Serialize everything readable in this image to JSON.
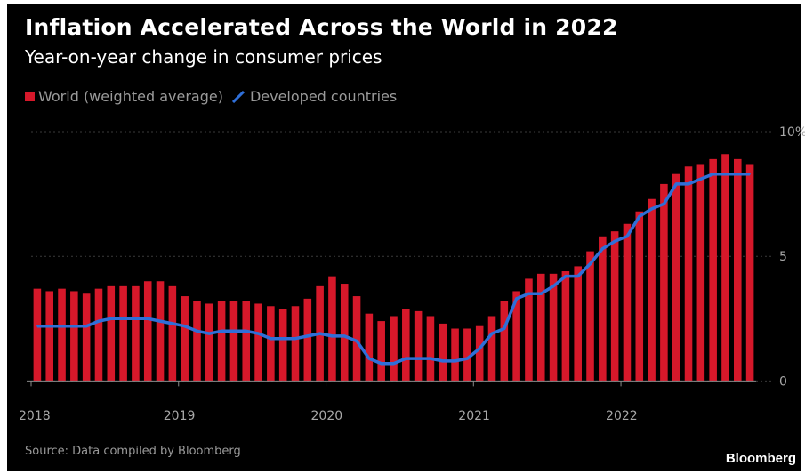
{
  "title": "Inflation Accelerated Across the World in 2022",
  "subtitle": "Year-on-year change in consumer prices",
  "legend": [
    {
      "label": "World (weighted average)",
      "color": "#d6182a",
      "icon": "red-square-icon"
    },
    {
      "label": "Developed countries",
      "color": "#2f6fd8",
      "icon": "blue-line-icon"
    }
  ],
  "source": "Source: Data compiled by Bloomberg",
  "brand": "Bloomberg",
  "chart_data": {
    "type": "bar",
    "x_tick_labels": [
      "2018",
      "2019",
      "2020",
      "2021",
      "2022"
    ],
    "y_tick_labels": [
      "0",
      "5",
      "10%"
    ],
    "y_ticks": [
      0,
      5,
      10
    ],
    "ylim": [
      -0.7,
      11
    ],
    "months": [
      "2018-01",
      "2018-02",
      "2018-03",
      "2018-04",
      "2018-05",
      "2018-06",
      "2018-07",
      "2018-08",
      "2018-09",
      "2018-10",
      "2018-11",
      "2018-12",
      "2019-01",
      "2019-02",
      "2019-03",
      "2019-04",
      "2019-05",
      "2019-06",
      "2019-07",
      "2019-08",
      "2019-09",
      "2019-10",
      "2019-11",
      "2019-12",
      "2020-01",
      "2020-02",
      "2020-03",
      "2020-04",
      "2020-05",
      "2020-06",
      "2020-07",
      "2020-08",
      "2020-09",
      "2020-10",
      "2020-11",
      "2020-12",
      "2021-01",
      "2021-02",
      "2021-03",
      "2021-04",
      "2021-05",
      "2021-06",
      "2021-07",
      "2021-08",
      "2021-09",
      "2021-10",
      "2021-11",
      "2021-12",
      "2022-01",
      "2022-02",
      "2022-03",
      "2022-04",
      "2022-05",
      "2022-06",
      "2022-07",
      "2022-08",
      "2022-09",
      "2022-10",
      "2022-11"
    ],
    "series": [
      {
        "name": "World (weighted average)",
        "kind": "bar",
        "color": "#d6182a",
        "values": [
          3.7,
          3.6,
          3.7,
          3.6,
          3.5,
          3.7,
          3.8,
          3.8,
          3.8,
          4.0,
          4.0,
          3.8,
          3.4,
          3.2,
          3.1,
          3.2,
          3.2,
          3.2,
          3.1,
          3.0,
          2.9,
          3.0,
          3.3,
          3.8,
          4.2,
          3.9,
          3.4,
          2.7,
          2.4,
          2.6,
          2.9,
          2.8,
          2.6,
          2.3,
          2.1,
          2.1,
          2.2,
          2.6,
          3.2,
          3.6,
          4.1,
          4.3,
          4.3,
          4.4,
          4.6,
          5.2,
          5.8,
          6.0,
          6.3,
          6.8,
          7.3,
          7.9,
          8.3,
          8.6,
          8.7,
          8.9,
          9.1,
          8.9,
          8.7
        ]
      },
      {
        "name": "Developed countries",
        "kind": "line",
        "color": "#2f6fd8",
        "values": [
          2.2,
          2.2,
          2.2,
          2.2,
          2.2,
          2.4,
          2.5,
          2.5,
          2.5,
          2.5,
          2.4,
          2.3,
          2.2,
          2.0,
          1.9,
          2.0,
          2.0,
          2.0,
          1.9,
          1.7,
          1.7,
          1.7,
          1.8,
          1.9,
          1.8,
          1.8,
          1.6,
          0.9,
          0.7,
          0.7,
          0.9,
          0.9,
          0.9,
          0.8,
          0.8,
          0.9,
          1.3,
          1.9,
          2.1,
          3.3,
          3.5,
          3.5,
          3.8,
          4.2,
          4.2,
          4.7,
          5.3,
          5.6,
          5.8,
          6.6,
          6.9,
          7.1,
          7.9,
          7.9,
          8.1,
          8.3,
          8.3,
          8.3,
          8.3
        ]
      }
    ]
  }
}
